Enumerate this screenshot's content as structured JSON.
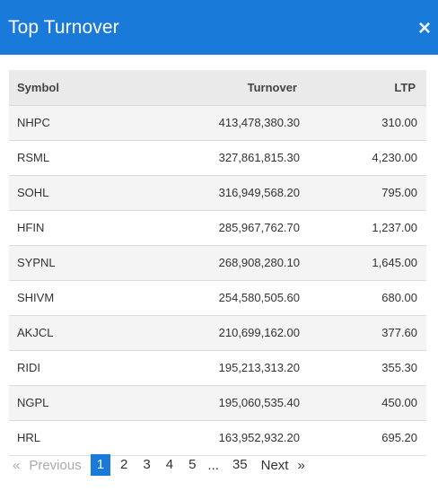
{
  "modal": {
    "title": "Top Turnover",
    "close_label": "×"
  },
  "table": {
    "headers": {
      "symbol": "Symbol",
      "turnover": "Turnover",
      "ltp": "LTP"
    },
    "rows": [
      {
        "symbol": "NHPC",
        "turnover": "413,478,380.30",
        "ltp": "310.00"
      },
      {
        "symbol": "RSML",
        "turnover": "327,861,815.30",
        "ltp": "4,230.00"
      },
      {
        "symbol": "SOHL",
        "turnover": "316,949,568.20",
        "ltp": "795.00"
      },
      {
        "symbol": "HFIN",
        "turnover": "285,967,762.70",
        "ltp": "1,237.00"
      },
      {
        "symbol": "SYPNL",
        "turnover": "268,908,280.10",
        "ltp": "1,645.00"
      },
      {
        "symbol": "SHIVM",
        "turnover": "254,580,505.60",
        "ltp": "680.00"
      },
      {
        "symbol": "AKJCL",
        "turnover": "210,699,162.00",
        "ltp": "377.60"
      },
      {
        "symbol": "RIDI",
        "turnover": "195,213,313.20",
        "ltp": "355.30"
      },
      {
        "symbol": "NGPL",
        "turnover": "195,060,535.40",
        "ltp": "450.00"
      },
      {
        "symbol": "HRL",
        "turnover": "163,952,932.20",
        "ltp": "695.20"
      }
    ]
  },
  "pagination": {
    "prev_arrow": "«",
    "prev_label": "Previous",
    "pages": [
      "1",
      "2",
      "3",
      "4",
      "5"
    ],
    "ellipsis": "...",
    "last_page": "35",
    "next_label": "Next",
    "next_arrow": "»",
    "active_page": "1"
  },
  "colors": {
    "header_bg": "#1a7ad9",
    "active_page_bg": "#1a7ad9"
  }
}
